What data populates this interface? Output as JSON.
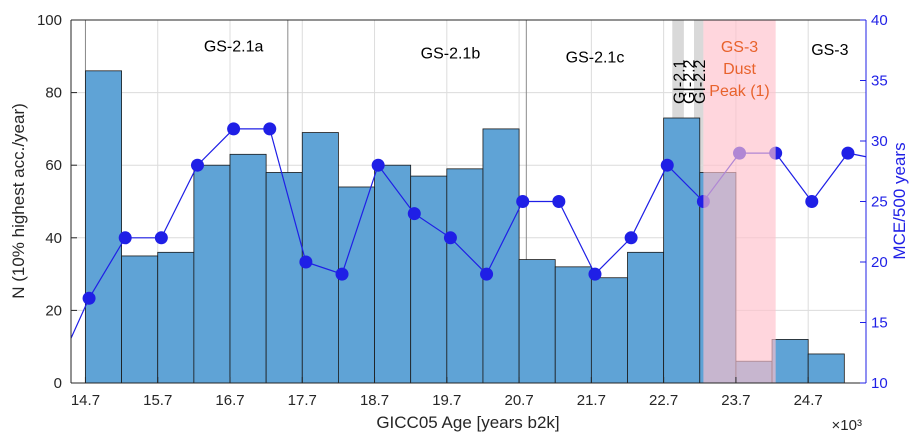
{
  "chart_data": {
    "type": "bar",
    "xlabel": "GICC05 Age [years b2k]",
    "x_multiplier_label": "×10³",
    "ylabel_left": "N (10% highest acc./year)",
    "ylabel_right": "MCE/500 years",
    "xlim": [
      14.5,
      25.5
    ],
    "ylim_left": [
      0,
      100
    ],
    "ylim_right": [
      10,
      40
    ],
    "x_ticks": [
      14.7,
      15.7,
      16.7,
      17.7,
      18.7,
      19.7,
      20.7,
      21.7,
      22.7,
      23.7,
      24.7
    ],
    "x_tick_labels": [
      "14.7",
      "15.7",
      "16.7",
      "17.7",
      "18.7",
      "19.7",
      "20.7",
      "21.7",
      "22.7",
      "23.7",
      "24.7"
    ],
    "y_left_ticks": [
      0,
      20,
      40,
      60,
      80,
      100
    ],
    "y_right_ticks": [
      10,
      15,
      20,
      25,
      30,
      35,
      40
    ],
    "grid": true,
    "bar_color": "#5fa3d6",
    "line_color": "#1f1fe6",
    "bars": {
      "edges": [
        14.7,
        15.2,
        15.7,
        16.2,
        16.7,
        17.2,
        17.7,
        18.2,
        18.7,
        19.2,
        19.7,
        20.2,
        20.7,
        21.2,
        21.7,
        22.2,
        22.7,
        23.2,
        23.7,
        24.2,
        24.7,
        25.2
      ],
      "values": [
        86,
        35,
        36,
        60,
        63,
        58,
        69,
        54,
        60,
        57,
        59,
        70,
        34,
        32,
        29,
        36,
        73,
        58,
        6,
        12,
        8
      ]
    },
    "series": [
      {
        "axis": "right",
        "x": [
          14.5,
          14.75,
          15.25,
          15.75,
          16.25,
          16.75,
          17.25,
          17.75,
          18.25,
          18.75,
          19.25,
          19.75,
          20.25,
          20.75,
          21.25,
          21.75,
          22.25,
          22.75,
          23.25,
          23.75,
          24.25,
          24.75,
          25.25,
          25.5
        ],
        "values": [
          13.7,
          17,
          22,
          22,
          28,
          31,
          31,
          20,
          19,
          28,
          24,
          22,
          19,
          25,
          25,
          19,
          22,
          28,
          25,
          29,
          29,
          25,
          29,
          28.7
        ],
        "markers": [
          false,
          true,
          true,
          true,
          true,
          true,
          true,
          true,
          true,
          true,
          true,
          true,
          true,
          true,
          true,
          true,
          true,
          true,
          true,
          true,
          true,
          true,
          true,
          false
        ]
      }
    ],
    "regions": [
      {
        "label": "GS-2.1a",
        "label_x": 16.75,
        "label_y": 93
      },
      {
        "label": "GS-2.1b",
        "label_x": 19.75,
        "label_y": 91
      },
      {
        "label": "GS-2.1c",
        "label_x": 21.75,
        "label_y": 90
      },
      {
        "label": "GS-3",
        "label_x": 25.0,
        "label_y": 92
      }
    ],
    "dividers": [
      14.7,
      17.5,
      20.8
    ],
    "bands": [
      {
        "label": "GI-2.1",
        "x0": 22.82,
        "x1": 22.98,
        "color": "#d9d9d9"
      },
      {
        "label": "GI-2.2",
        "x0": 23.12,
        "x1": 23.25,
        "color": "#d9d9d9"
      }
    ],
    "band_labels": [
      {
        "text": "GI-2.1",
        "x": 22.92
      },
      {
        "text": "GI-2.2",
        "x": 23.06
      },
      {
        "text": "GI-2.2",
        "x": 23.2
      }
    ],
    "dust_peak": {
      "x0": 23.25,
      "x1": 24.25,
      "color": "#ffc0cb",
      "label_color": "#e8622c",
      "label_lines": [
        "GS-3",
        "Dust",
        "Peak (1)"
      ]
    }
  }
}
